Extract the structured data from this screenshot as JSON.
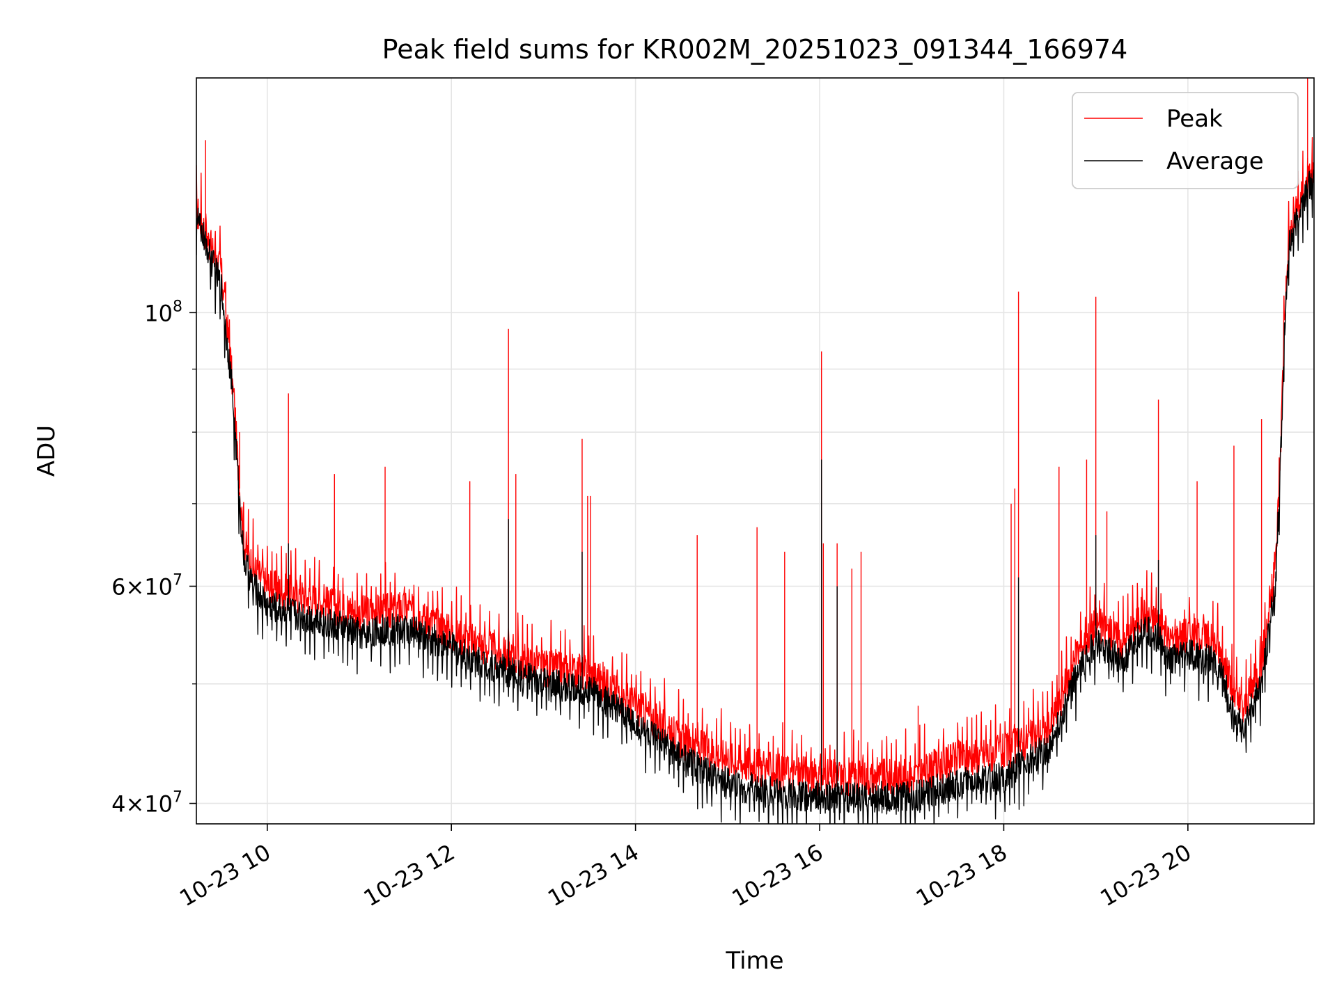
{
  "chart_data": {
    "type": "line",
    "title": "Peak field sums for KR002M_20251023_091344_166974",
    "xlabel": "Time",
    "ylabel": "ADU",
    "yscale": "log",
    "xlim": [
      9.23,
      21.37
    ],
    "ylim": [
      38500000,
      155000000
    ],
    "grid": true,
    "legend_position": "upper right",
    "x_ticks": [
      {
        "value": 10,
        "label": "10-23 10"
      },
      {
        "value": 12,
        "label": "10-23 12"
      },
      {
        "value": 14,
        "label": "10-23 14"
      },
      {
        "value": 16,
        "label": "10-23 16"
      },
      {
        "value": 18,
        "label": "10-23 18"
      },
      {
        "value": 20,
        "label": "10-23 20"
      }
    ],
    "y_major_ticks": [
      {
        "value": 100000000,
        "base": "10",
        "exp": "8",
        "mult": ""
      },
      {
        "value": 60000000,
        "base": "10",
        "exp": "7",
        "mult": "6"
      },
      {
        "value": 40000000,
        "base": "10",
        "exp": "7",
        "mult": "4"
      }
    ],
    "y_minor_grid": [
      50000000,
      70000000,
      80000000,
      90000000
    ],
    "series": [
      {
        "name": "Peak",
        "color": "#ff0000",
        "baseline": [
          [
            9.23,
            121000000
          ],
          [
            9.3,
            118000000
          ],
          [
            9.4,
            112000000
          ],
          [
            9.5,
            108000000
          ],
          [
            9.55,
            100000000
          ],
          [
            9.6,
            92000000
          ],
          [
            9.65,
            82000000
          ],
          [
            9.7,
            72000000
          ],
          [
            9.75,
            65000000
          ],
          [
            9.85,
            62000000
          ],
          [
            10.0,
            60000000
          ],
          [
            10.5,
            58500000
          ],
          [
            11.0,
            57000000
          ],
          [
            11.5,
            57500000
          ],
          [
            12.0,
            55000000
          ],
          [
            12.5,
            53000000
          ],
          [
            13.0,
            51500000
          ],
          [
            13.5,
            51000000
          ],
          [
            14.0,
            48000000
          ],
          [
            14.5,
            45000000
          ],
          [
            15.0,
            43500000
          ],
          [
            15.5,
            42500000
          ],
          [
            16.0,
            42000000
          ],
          [
            16.5,
            42000000
          ],
          [
            17.0,
            42000000
          ],
          [
            17.5,
            43500000
          ],
          [
            18.0,
            44000000
          ],
          [
            18.5,
            46000000
          ],
          [
            18.8,
            53000000
          ],
          [
            19.0,
            56000000
          ],
          [
            19.3,
            54000000
          ],
          [
            19.5,
            57000000
          ],
          [
            19.7,
            56000000
          ],
          [
            19.8,
            54000000
          ],
          [
            20.0,
            55000000
          ],
          [
            20.3,
            54000000
          ],
          [
            20.4,
            52000000
          ],
          [
            20.5,
            49000000
          ],
          [
            20.6,
            47500000
          ],
          [
            20.8,
            52000000
          ],
          [
            20.95,
            62000000
          ],
          [
            21.0,
            75000000
          ],
          [
            21.05,
            100000000
          ],
          [
            21.1,
            115000000
          ],
          [
            21.2,
            122000000
          ],
          [
            21.3,
            128000000
          ],
          [
            21.37,
            130000000
          ]
        ],
        "spikes": [
          [
            9.33,
            138000000
          ],
          [
            9.33,
            118000000
          ],
          [
            9.35,
            113000000
          ],
          [
            9.55,
            106000000
          ],
          [
            9.7,
            80000000
          ],
          [
            10.23,
            86000000
          ],
          [
            10.73,
            74000000
          ],
          [
            11.28,
            75000000
          ],
          [
            12.2,
            73000000
          ],
          [
            12.62,
            97000000
          ],
          [
            12.7,
            74000000
          ],
          [
            13.42,
            79000000
          ],
          [
            13.48,
            71000000
          ],
          [
            13.51,
            71000000
          ],
          [
            14.67,
            66000000
          ],
          [
            15.32,
            67000000
          ],
          [
            15.62,
            64000000
          ],
          [
            16.02,
            93000000
          ],
          [
            16.04,
            65000000
          ],
          [
            16.19,
            65000000
          ],
          [
            16.35,
            62000000
          ],
          [
            16.45,
            64000000
          ],
          [
            17.07,
            48000000
          ],
          [
            18.08,
            70000000
          ],
          [
            18.12,
            72000000
          ],
          [
            18.16,
            104000000
          ],
          [
            18.6,
            75000000
          ],
          [
            18.9,
            76000000
          ],
          [
            19.0,
            103000000
          ],
          [
            19.12,
            69000000
          ],
          [
            19.68,
            85000000
          ],
          [
            20.1,
            73000000
          ],
          [
            20.5,
            78000000
          ],
          [
            20.8,
            82000000
          ],
          [
            21.3,
            158000000
          ]
        ]
      },
      {
        "name": "Average",
        "color": "#000000",
        "baseline": [
          [
            9.23,
            120000000
          ],
          [
            9.3,
            116000000
          ],
          [
            9.4,
            110000000
          ],
          [
            9.5,
            105000000
          ],
          [
            9.55,
            97000000
          ],
          [
            9.6,
            90000000
          ],
          [
            9.65,
            80000000
          ],
          [
            9.7,
            70000000
          ],
          [
            9.75,
            63000000
          ],
          [
            9.85,
            60000000
          ],
          [
            10.0,
            58000000
          ],
          [
            10.5,
            56500000
          ],
          [
            11.0,
            55000000
          ],
          [
            11.5,
            55500000
          ],
          [
            12.0,
            53500000
          ],
          [
            12.5,
            51500000
          ],
          [
            13.0,
            50000000
          ],
          [
            13.5,
            49500000
          ],
          [
            14.0,
            46500000
          ],
          [
            14.5,
            43500000
          ],
          [
            15.0,
            41500000
          ],
          [
            15.5,
            40800000
          ],
          [
            16.0,
            40500000
          ],
          [
            16.5,
            40500000
          ],
          [
            17.0,
            40500000
          ],
          [
            17.5,
            41500000
          ],
          [
            18.0,
            42000000
          ],
          [
            18.5,
            44500000
          ],
          [
            18.8,
            51000000
          ],
          [
            19.0,
            54000000
          ],
          [
            19.3,
            52000000
          ],
          [
            19.5,
            55500000
          ],
          [
            19.7,
            54500000
          ],
          [
            19.8,
            52000000
          ],
          [
            20.0,
            53000000
          ],
          [
            20.3,
            52000000
          ],
          [
            20.4,
            50000000
          ],
          [
            20.5,
            47000000
          ],
          [
            20.6,
            46000000
          ],
          [
            20.8,
            50000000
          ],
          [
            20.95,
            60000000
          ],
          [
            21.0,
            73000000
          ],
          [
            21.05,
            98000000
          ],
          [
            21.1,
            113000000
          ],
          [
            21.2,
            120000000
          ],
          [
            21.3,
            126000000
          ],
          [
            21.37,
            128000000
          ]
        ],
        "spikes": [
          [
            10.23,
            65000000
          ],
          [
            12.62,
            68000000
          ],
          [
            13.42,
            64000000
          ],
          [
            16.02,
            76000000
          ],
          [
            16.19,
            60000000
          ],
          [
            18.16,
            61000000
          ],
          [
            19.0,
            66000000
          ],
          [
            19.68,
            63000000
          ],
          [
            21.3,
            125000000
          ]
        ]
      }
    ]
  }
}
